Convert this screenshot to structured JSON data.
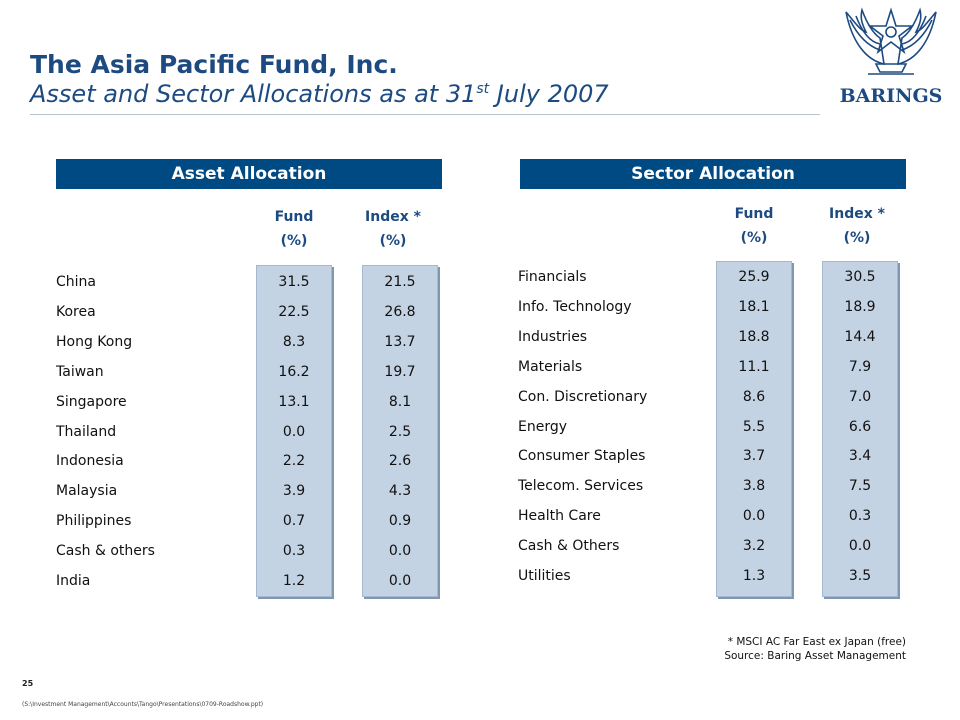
{
  "header": {
    "title": "The Asia Pacific Fund, Inc.",
    "subtitle_main": "Asset and Sector Allocations as at 31",
    "subtitle_sup": "st",
    "subtitle_tail": " July 2007",
    "logo_text": "BARINGS"
  },
  "asset_allocation": {
    "heading": "Asset Allocation",
    "col_fund": [
      "Fund",
      "(%)"
    ],
    "col_index": [
      "Index *",
      "(%)"
    ],
    "rows": [
      {
        "label": "China",
        "fund": "31.5",
        "index": "21.5"
      },
      {
        "label": "Korea",
        "fund": "22.5",
        "index": "26.8"
      },
      {
        "label": "Hong Kong",
        "fund": "8.3",
        "index": "13.7"
      },
      {
        "label": "Taiwan",
        "fund": "16.2",
        "index": "19.7"
      },
      {
        "label": "Singapore",
        "fund": "13.1",
        "index": "8.1"
      },
      {
        "label": "Thailand",
        "fund": "0.0",
        "index": "2.5"
      },
      {
        "label": "Indonesia",
        "fund": "2.2",
        "index": "2.6"
      },
      {
        "label": "Malaysia",
        "fund": "3.9",
        "index": "4.3"
      },
      {
        "label": "Philippines",
        "fund": "0.7",
        "index": "0.9"
      },
      {
        "label": "Cash & others",
        "fund": "0.3",
        "index": "0.0"
      },
      {
        "label": "India",
        "fund": "1.2",
        "index": "0.0"
      }
    ]
  },
  "sector_allocation": {
    "heading": "Sector Allocation",
    "col_fund": [
      "Fund",
      "(%)"
    ],
    "col_index": [
      "Index *",
      "(%)"
    ],
    "rows": [
      {
        "label": "Financials",
        "fund": "25.9",
        "index": "30.5"
      },
      {
        "label": "Info. Technology",
        "fund": "18.1",
        "index": "18.9"
      },
      {
        "label": "Industries",
        "fund": "18.8",
        "index": "14.4"
      },
      {
        "label": "Materials",
        "fund": "11.1",
        "index": "7.9"
      },
      {
        "label": "Con. Discretionary",
        "fund": "8.6",
        "index": "7.0"
      },
      {
        "label": "Energy",
        "fund": "5.5",
        "index": "6.6"
      },
      {
        "label": "Consumer Staples",
        "fund": "3.7",
        "index": "3.4"
      },
      {
        "label": "Telecom. Services",
        "fund": "3.8",
        "index": "7.5"
      },
      {
        "label": "Health Care",
        "fund": "0.0",
        "index": "0.3"
      },
      {
        "label": "Cash & Others",
        "fund": "3.2",
        "index": "0.0"
      },
      {
        "label": "Utilities",
        "fund": "1.3",
        "index": "3.5"
      }
    ]
  },
  "footer": {
    "footnote": "*  MSCI AC Far East ex Japan (free)",
    "source": "Source: Baring Asset Management",
    "page_number": "25",
    "file_path": "(S:\\Investment Management\\Accounts\\Tango\\Presentations\\0709-Roadshow.ppt)"
  },
  "colors": {
    "brand_blue": "#004a84",
    "title_blue": "#1d4a80",
    "panel_fill": "#c4d3e4"
  }
}
